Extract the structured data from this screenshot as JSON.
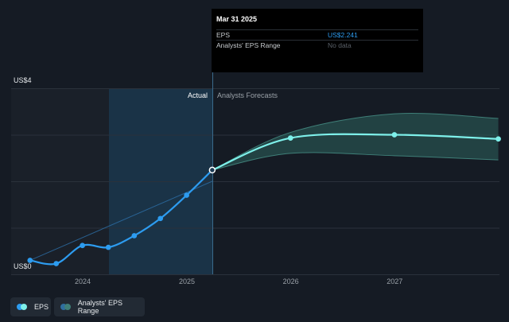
{
  "tooltip": {
    "date": "Mar 31 2025",
    "rows": [
      {
        "label": "EPS",
        "value": "US$2.241"
      },
      {
        "label": "Analysts' EPS Range",
        "value": "No data"
      }
    ]
  },
  "legend": {
    "eps_label": "EPS",
    "range_label": "Analysts' EPS Range"
  },
  "colors": {
    "background": "#151b24",
    "eps_line": "#2d9cf0",
    "forecast_line": "#7ef0ea",
    "range_fill": "#2c5e59",
    "highlight": "#1b3a52"
  },
  "chart_data": {
    "type": "line",
    "y_axis": {
      "min": 0,
      "max": 4,
      "labels": [
        "US$0",
        "US$4"
      ],
      "gridlines": [
        0,
        1,
        2,
        3,
        4
      ]
    },
    "x_axis": {
      "ticks": [
        "2024",
        "2025",
        "2026",
        "2027"
      ]
    },
    "sections": {
      "actual_label": "Actual",
      "forecast_label": "Analysts Forecasts"
    },
    "series": [
      {
        "name": "EPS",
        "kind": "actual",
        "x": [
          "2023-06-30",
          "2023-09-30",
          "2023-12-31",
          "2024-03-31",
          "2024-06-30",
          "2024-09-30",
          "2024-12-31",
          "2025-03-31"
        ],
        "values": [
          0.3,
          0.23,
          0.62,
          0.58,
          0.83,
          1.2,
          1.7,
          2.241
        ]
      },
      {
        "kind": "forecast",
        "x": [
          "2025-03-31",
          "2025-12-31",
          "2026-12-31",
          "2027-12-31"
        ],
        "values": [
          2.241,
          2.93,
          3.0,
          2.91
        ]
      },
      {
        "kind": "forecast_range",
        "x": [
          "2025-03-31",
          "2025-12-31",
          "2026-12-31",
          "2027-12-31"
        ],
        "low": [
          2.241,
          2.6,
          2.55,
          2.46
        ],
        "high": [
          2.241,
          3.05,
          3.45,
          3.35
        ]
      },
      {
        "kind": "past_estimate",
        "x": [
          "2023-06-30",
          "2025-03-31"
        ],
        "values": [
          0.3,
          2.0
        ]
      }
    ]
  }
}
